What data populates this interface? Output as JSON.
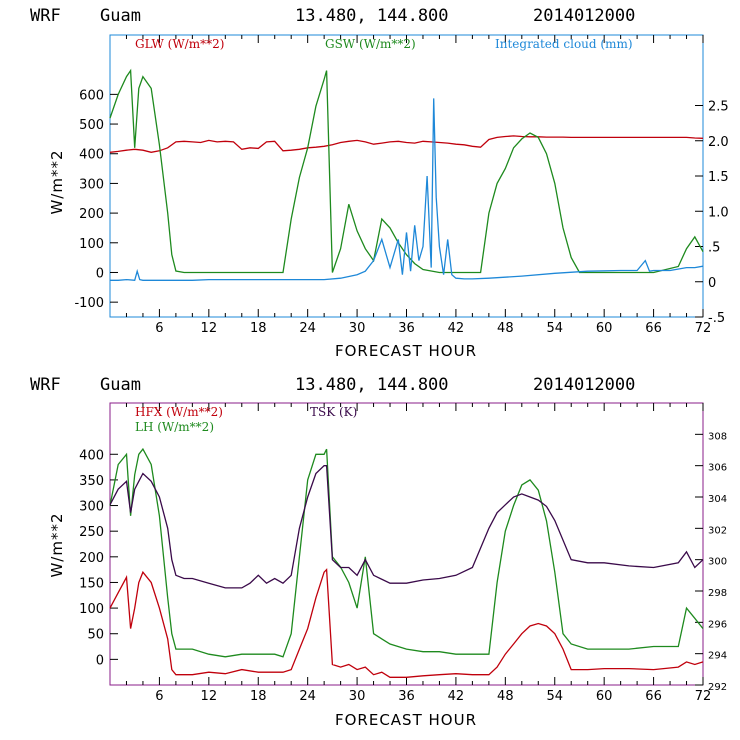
{
  "colors": {
    "red": "#c0000c",
    "green": "#1e8a1e",
    "blue": "#1e88d8",
    "purple": "#3a0a4a",
    "frame_top": "#1e88d8",
    "frame_bottom": "#8a1e8a"
  },
  "chart_data": [
    {
      "type": "line",
      "header": {
        "model": "WRF",
        "site": "Guam",
        "coords": "13.480, 144.800",
        "date": "2014012000"
      },
      "xlabel": "FORECAST HOUR",
      "ylabel": "W/m**2",
      "xlim": [
        0,
        72
      ],
      "ylim": [
        -150,
        800
      ],
      "y2lim": [
        -0.5,
        3.5
      ],
      "xticks": [
        "6",
        "12",
        "18",
        "24",
        "30",
        "36",
        "42",
        "48",
        "54",
        "60",
        "66",
        "72"
      ],
      "yticks": [
        "-100",
        "0",
        "100",
        "200",
        "300",
        "400",
        "500",
        "600"
      ],
      "y2ticks": [
        "-.5",
        "0",
        ".5",
        "1.0",
        "1.5",
        "2.0",
        "2.5"
      ],
      "grid": false,
      "legend": "top",
      "series": [
        {
          "name": "GLW (W/m**2)",
          "color": "#c0000c",
          "axis": "left",
          "x": [
            0,
            1,
            2,
            3,
            4,
            5,
            6,
            7,
            8,
            9,
            10,
            11,
            12,
            13,
            14,
            15,
            16,
            17,
            18,
            19,
            20,
            21,
            22,
            23,
            24,
            25,
            26,
            27,
            28,
            29,
            30,
            31,
            32,
            33,
            34,
            35,
            36,
            37,
            38,
            39,
            40,
            41,
            42,
            43,
            44,
            45,
            46,
            47,
            48,
            49,
            50,
            51,
            52,
            53,
            54,
            55,
            56,
            57,
            58,
            59,
            60,
            61,
            62,
            63,
            64,
            65,
            66,
            67,
            68,
            69,
            70,
            71,
            72
          ],
          "y": [
            405,
            408,
            412,
            415,
            412,
            405,
            410,
            420,
            440,
            442,
            440,
            438,
            445,
            440,
            442,
            440,
            415,
            420,
            418,
            440,
            442,
            410,
            412,
            415,
            420,
            422,
            425,
            430,
            438,
            442,
            445,
            440,
            432,
            436,
            440,
            442,
            438,
            436,
            442,
            440,
            438,
            436,
            432,
            430,
            425,
            422,
            448,
            455,
            458,
            460,
            458,
            457,
            457,
            456,
            456,
            456,
            455,
            455,
            455,
            455,
            455,
            455,
            455,
            455,
            455,
            455,
            455,
            455,
            455,
            455,
            455,
            453,
            452
          ]
        },
        {
          "name": "GSW (W/m**2)",
          "color": "#1e8a1e",
          "axis": "left",
          "x": [
            0,
            1,
            2,
            2.5,
            3,
            3.5,
            4,
            5,
            6,
            7,
            7.5,
            8,
            9,
            10,
            12,
            14,
            16,
            18,
            20,
            21,
            22,
            23,
            24,
            25,
            26,
            26.3,
            27,
            28,
            29,
            30,
            31,
            32,
            33,
            34,
            35,
            36,
            37,
            38,
            39,
            40,
            41,
            42,
            43,
            44,
            45,
            46,
            47,
            48,
            49,
            50,
            51,
            52,
            53,
            54,
            55,
            56,
            57,
            60,
            63,
            66,
            69,
            70,
            71,
            72
          ],
          "y": [
            520,
            600,
            660,
            680,
            420,
            620,
            660,
            620,
            430,
            200,
            60,
            5,
            0,
            0,
            0,
            0,
            0,
            0,
            0,
            0,
            180,
            320,
            420,
            560,
            650,
            680,
            0,
            80,
            230,
            140,
            80,
            40,
            180,
            150,
            100,
            60,
            30,
            10,
            5,
            0,
            0,
            0,
            0,
            0,
            0,
            200,
            300,
            350,
            420,
            450,
            470,
            455,
            400,
            300,
            150,
            50,
            0,
            0,
            0,
            0,
            20,
            80,
            120,
            70
          ]
        },
        {
          "name": "Integrated cloud (mm)",
          "color": "#1e88d8",
          "axis": "right",
          "x": [
            0,
            1,
            2,
            3,
            3.3,
            3.6,
            4,
            6,
            8,
            10,
            12,
            14,
            16,
            18,
            20,
            22,
            24,
            26,
            28,
            30,
            31,
            32,
            33,
            33.5,
            34,
            35,
            35.5,
            36,
            36.5,
            37,
            37.5,
            38,
            38.5,
            39,
            39.3,
            39.6,
            40,
            40.5,
            41,
            41.5,
            42,
            43,
            44,
            46,
            50,
            54,
            58,
            62,
            64,
            65,
            65.5,
            66,
            68,
            70,
            71,
            72
          ],
          "y": [
            0.02,
            0.02,
            0.03,
            0.02,
            0.15,
            0.03,
            0.02,
            0.02,
            0.02,
            0.02,
            0.03,
            0.03,
            0.03,
            0.03,
            0.03,
            0.03,
            0.03,
            0.03,
            0.05,
            0.1,
            0.15,
            0.3,
            0.6,
            0.4,
            0.2,
            0.6,
            0.1,
            0.7,
            0.15,
            0.8,
            0.3,
            0.5,
            1.5,
            0.2,
            2.6,
            1.2,
            0.5,
            0.1,
            0.6,
            0.1,
            0.05,
            0.04,
            0.04,
            0.05,
            0.08,
            0.12,
            0.15,
            0.16,
            0.16,
            0.3,
            0.15,
            0.16,
            0.16,
            0.2,
            0.2,
            0.22
          ]
        }
      ]
    },
    {
      "type": "line",
      "header": {
        "model": "WRF",
        "site": "Guam",
        "coords": "13.480, 144.800",
        "date": "2014012000"
      },
      "xlabel": "FORECAST HOUR",
      "ylabel": "W/m**2",
      "xlim": [
        0,
        72
      ],
      "ylim": [
        -50,
        500
      ],
      "y2lim": [
        292,
        310
      ],
      "xticks": [
        "6",
        "12",
        "18",
        "24",
        "30",
        "36",
        "42",
        "48",
        "54",
        "60",
        "66",
        "72"
      ],
      "yticks": [
        "0",
        "50",
        "100",
        "150",
        "200",
        "250",
        "300",
        "350",
        "400"
      ],
      "y2ticks": [
        "292",
        "294",
        "296",
        "298",
        "300",
        "302",
        "304",
        "306",
        "308"
      ],
      "grid": false,
      "legend": "top-left",
      "series": [
        {
          "name": "HFX (W/m**2)",
          "color": "#c0000c",
          "axis": "left",
          "x": [
            0,
            1,
            2,
            2.5,
            3,
            3.5,
            4,
            5,
            6,
            7,
            7.5,
            8,
            9,
            10,
            12,
            14,
            16,
            18,
            20,
            21,
            22,
            23,
            24,
            25,
            26,
            26.3,
            27,
            28,
            29,
            30,
            31,
            32,
            33,
            34,
            36,
            38,
            40,
            42,
            44,
            46,
            47,
            48,
            49,
            50,
            51,
            52,
            53,
            54,
            55,
            56,
            58,
            60,
            63,
            66,
            69,
            70,
            71,
            72
          ],
          "y": [
            100,
            130,
            160,
            60,
            100,
            150,
            170,
            150,
            100,
            40,
            -20,
            -30,
            -30,
            -30,
            -25,
            -28,
            -20,
            -25,
            -25,
            -25,
            -20,
            20,
            60,
            120,
            170,
            175,
            -10,
            -15,
            -10,
            -20,
            -15,
            -30,
            -25,
            -35,
            -35,
            -32,
            -30,
            -28,
            -30,
            -30,
            -15,
            10,
            30,
            50,
            65,
            70,
            65,
            50,
            20,
            -20,
            -20,
            -18,
            -18,
            -20,
            -15,
            -5,
            -10,
            -5
          ]
        },
        {
          "name": "LH  (W/m**2)",
          "color": "#1e8a1e",
          "axis": "left",
          "x": [
            0,
            1,
            2,
            2.5,
            3,
            3.5,
            4,
            5,
            6,
            7,
            7.5,
            8,
            9,
            10,
            12,
            14,
            16,
            18,
            20,
            21,
            22,
            23,
            24,
            25,
            26,
            26.3,
            27,
            28,
            29,
            30,
            31,
            32,
            33,
            34,
            36,
            38,
            40,
            42,
            44,
            46,
            47,
            48,
            49,
            50,
            51,
            52,
            53,
            54,
            55,
            56,
            58,
            60,
            63,
            66,
            69,
            70,
            71,
            72
          ],
          "y": [
            300,
            380,
            400,
            280,
            360,
            400,
            410,
            380,
            280,
            120,
            50,
            20,
            20,
            20,
            10,
            5,
            10,
            10,
            10,
            5,
            50,
            200,
            350,
            400,
            400,
            410,
            200,
            180,
            150,
            100,
            200,
            50,
            40,
            30,
            20,
            15,
            15,
            10,
            10,
            10,
            150,
            250,
            300,
            340,
            350,
            330,
            270,
            170,
            50,
            30,
            20,
            20,
            20,
            25,
            25,
            100,
            80,
            60
          ]
        },
        {
          "name": "TSK (K)",
          "color": "#3a0a4a",
          "axis": "right",
          "x": [
            0,
            1,
            2,
            2.5,
            3,
            3.5,
            4,
            5,
            6,
            7,
            7.5,
            8,
            9,
            10,
            12,
            14,
            16,
            17,
            18,
            19,
            20,
            21,
            22,
            23,
            24,
            25,
            26,
            26.3,
            27,
            28,
            29,
            30,
            31,
            32,
            34,
            36,
            38,
            40,
            42,
            44,
            46,
            47,
            48,
            49,
            50,
            51,
            52,
            53,
            54,
            56,
            58,
            60,
            63,
            66,
            69,
            70,
            71,
            72
          ],
          "y": [
            303.5,
            304.5,
            305,
            303,
            304.5,
            305,
            305.5,
            305,
            304,
            302,
            300,
            299,
            298.8,
            298.8,
            298.5,
            298.2,
            298.2,
            298.5,
            299,
            298.5,
            298.8,
            298.5,
            299,
            302,
            304,
            305.5,
            306,
            306,
            300,
            299.5,
            299.5,
            299,
            300,
            299,
            298.5,
            298.5,
            298.7,
            298.8,
            299,
            299.5,
            302,
            303,
            303.5,
            304,
            304.2,
            304.0,
            303.8,
            303.4,
            302.5,
            300,
            299.8,
            299.8,
            299.6,
            299.5,
            299.8,
            300.5,
            299.5,
            300
          ]
        }
      ]
    }
  ]
}
